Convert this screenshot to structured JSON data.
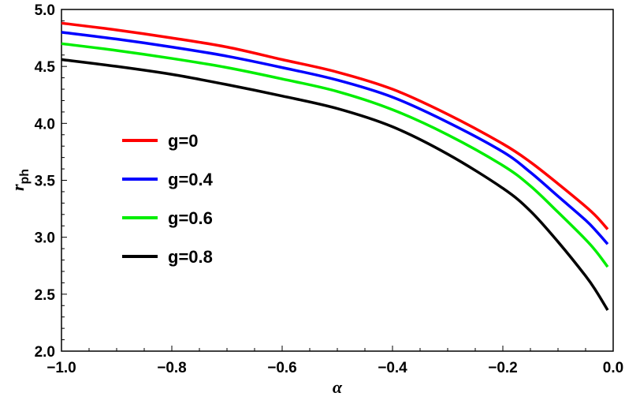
{
  "chart_data": {
    "type": "line",
    "title": "",
    "xlabel": "α",
    "ylabel": "r_ph",
    "ylabel_main": "r",
    "ylabel_sub": "ph",
    "xlim": [
      -1.0,
      0.0
    ],
    "ylim": [
      2.0,
      5.0
    ],
    "grid": false,
    "legend_position": "center-left",
    "x_ticks": [
      "-1.0",
      "-0.8",
      "-0.6",
      "-0.4",
      "-0.2",
      "0.0"
    ],
    "x_tick_values": [
      -1.0,
      -0.8,
      -0.6,
      -0.4,
      -0.2,
      0.0
    ],
    "y_ticks": [
      "2.0",
      "2.5",
      "3.0",
      "3.5",
      "4.0",
      "4.5",
      "5.0"
    ],
    "y_tick_values": [
      2.0,
      2.5,
      3.0,
      3.5,
      4.0,
      4.5,
      5.0
    ],
    "x": [
      -1.0,
      -0.9,
      -0.8,
      -0.7,
      -0.6,
      -0.5,
      -0.4,
      -0.3,
      -0.2,
      -0.15,
      -0.1,
      -0.05,
      -0.03,
      -0.01
    ],
    "series": [
      {
        "name": "g=0",
        "color": "#ff0000",
        "values": [
          4.88,
          4.82,
          4.75,
          4.67,
          4.56,
          4.45,
          4.3,
          4.08,
          3.82,
          3.66,
          3.47,
          3.27,
          3.18,
          3.07
        ]
      },
      {
        "name": "g=0.4",
        "color": "#0000ff",
        "values": [
          4.8,
          4.74,
          4.67,
          4.59,
          4.49,
          4.38,
          4.23,
          4.01,
          3.75,
          3.57,
          3.36,
          3.15,
          3.05,
          2.94
        ]
      },
      {
        "name": "g=0.6",
        "color": "#00ee00",
        "values": [
          4.7,
          4.64,
          4.57,
          4.49,
          4.39,
          4.28,
          4.12,
          3.9,
          3.63,
          3.45,
          3.22,
          2.98,
          2.87,
          2.74
        ]
      },
      {
        "name": "g=0.8",
        "color": "#000000",
        "values": [
          4.56,
          4.5,
          4.43,
          4.34,
          4.24,
          4.13,
          3.97,
          3.73,
          3.43,
          3.23,
          2.96,
          2.66,
          2.52,
          2.36
        ]
      }
    ]
  }
}
